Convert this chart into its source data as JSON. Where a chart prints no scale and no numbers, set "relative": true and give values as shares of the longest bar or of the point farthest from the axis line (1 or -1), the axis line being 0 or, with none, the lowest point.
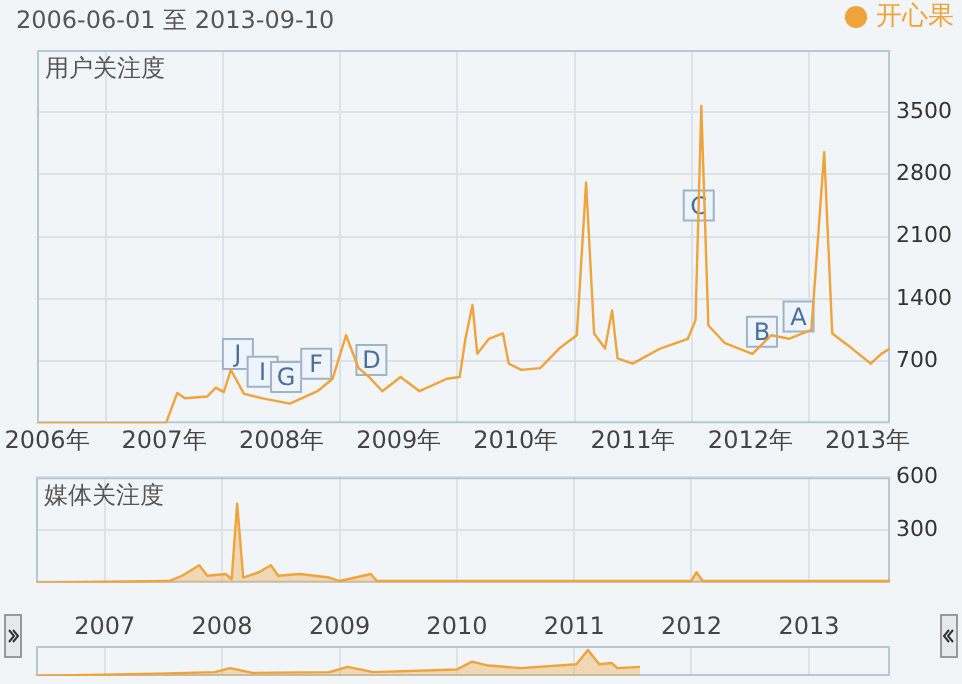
{
  "chart_data": [
    {
      "type": "line",
      "subtitle": "2006-06-01 至 2013-09-10",
      "title": "用户关注度",
      "legend": "top right",
      "grid": true,
      "x": [
        "2006-06-01",
        "2007-07-08",
        "2007-08-12",
        "2007-09-05",
        "2007-11-13",
        "2007-12-10",
        "2008-01-04",
        "2008-01-26",
        "2008-03-07",
        "2008-05-04",
        "2008-07-28",
        "2008-10-22",
        "2008-12-08",
        "2009-01-19",
        "2009-02-27",
        "2009-04-01",
        "2009-05-12",
        "2009-07-08",
        "2009-09-05",
        "2009-11-29",
        "2010-01-08",
        "2010-01-26",
        "2010-02-17",
        "2010-03-04",
        "2010-04-09",
        "2010-05-23",
        "2010-06-10",
        "2010-07-19",
        "2010-09-16",
        "2010-11-14",
        "2011-01-08",
        "2011-02-06",
        "2011-03-03",
        "2011-04-06",
        "2011-04-28",
        "2011-05-15",
        "2011-07-01",
        "2011-09-25",
        "2011-12-20",
        "2012-01-13",
        "2012-01-31",
        "2012-02-22",
        "2012-04-14",
        "2012-07-08",
        "2012-09-05",
        "2012-10-30",
        "2013-01-08",
        "2013-02-17",
        "2013-03-14",
        "2013-05-15",
        "2013-07-12",
        "2013-08-14",
        "2013-09-10"
      ],
      "series": [
        {
          "name": "开心果",
          "color": "#efa33a",
          "values": [
            0,
            0,
            340,
            280,
            300,
            400,
            350,
            600,
            330,
            280,
            220,
            360,
            500,
            990,
            620,
            520,
            360,
            520,
            360,
            500,
            520,
            950,
            1330,
            780,
            950,
            1010,
            670,
            600,
            620,
            840,
            990,
            2710,
            1010,
            840,
            1270,
            730,
            670,
            840,
            950,
            1160,
            3570,
            1100,
            900,
            780,
            990,
            950,
            1050,
            3050,
            1010,
            840,
            670,
            780,
            840
          ]
        }
      ],
      "xlim": [
        "2006-06-01",
        "2013-09-10"
      ],
      "xticks": [
        {
          "value": "2006-07-02",
          "label": "2006年"
        },
        {
          "value": "2007-01-01",
          "label": null
        },
        {
          "value": "2007-07-02",
          "label": "2007年"
        },
        {
          "value": "2008-01-01",
          "label": null
        },
        {
          "value": "2008-07-02",
          "label": "2008年"
        },
        {
          "value": "2009-01-01",
          "label": null
        },
        {
          "value": "2009-07-02",
          "label": "2009年"
        },
        {
          "value": "2010-01-01",
          "label": null
        },
        {
          "value": "2010-07-02",
          "label": "2010年"
        },
        {
          "value": "2011-01-01",
          "label": null
        },
        {
          "value": "2011-07-02",
          "label": "2011年"
        },
        {
          "value": "2012-01-01",
          "label": null
        },
        {
          "value": "2012-07-02",
          "label": "2012年"
        },
        {
          "value": "2013-01-01",
          "label": null
        },
        {
          "value": "2013-07-02",
          "label": "2013年"
        }
      ],
      "ylim": [
        0,
        4200
      ],
      "yticks": [
        700,
        1400,
        2100,
        2800,
        3500
      ],
      "annotations": [
        {
          "text": "J",
          "x": "2008-02-17",
          "y": 780
        },
        {
          "text": "I",
          "x": "2008-05-04",
          "y": 580
        },
        {
          "text": "G",
          "x": "2008-07-16",
          "y": 520
        },
        {
          "text": "F",
          "x": "2008-10-18",
          "y": 670
        },
        {
          "text": "D",
          "x": "2009-04-08",
          "y": 710
        },
        {
          "text": "C",
          "x": "2012-01-23",
          "y": 2450
        },
        {
          "text": "B",
          "x": "2012-08-07",
          "y": 1030
        },
        {
          "text": "A",
          "x": "2012-11-29",
          "y": 1200
        }
      ]
    },
    {
      "type": "area",
      "title": "媒体关注度",
      "grid": true,
      "tick_labels": "y",
      "x": [
        "2006-06-01",
        "2007-07-20",
        "2007-08-30",
        "2007-10-22",
        "2007-11-16",
        "2008-01-12",
        "2008-01-31",
        "2008-02-17",
        "2008-03-07",
        "2008-04-24",
        "2008-06-01",
        "2008-06-24",
        "2008-08-30",
        "2008-11-30",
        "2009-01-01",
        "2009-04-08",
        "2009-04-27",
        "2010-01-26",
        "2011-01-08",
        "2011-12-31",
        "2012-01-17",
        "2012-02-05",
        "2013-09-10"
      ],
      "series": [
        {
          "color": "#efa33a",
          "values": [
            0,
            10,
            40,
            100,
            40,
            50,
            20,
            450,
            30,
            60,
            100,
            40,
            50,
            30,
            10,
            50,
            10,
            10,
            10,
            10,
            60,
            10,
            10
          ]
        }
      ],
      "xlim": [
        "2006-06-01",
        "2013-09-10"
      ],
      "xticks": [
        {
          "value": "2007-01-01",
          "label": null
        },
        {
          "value": "2008-01-01",
          "label": null
        },
        {
          "value": "2009-01-01",
          "label": null
        },
        {
          "value": "2010-01-01",
          "label": null
        },
        {
          "value": "2011-01-01",
          "label": null
        },
        {
          "value": "2012-01-01",
          "label": null
        },
        {
          "value": "2013-01-01",
          "label": null
        }
      ],
      "ylim": [
        0,
        600
      ],
      "yticks": [
        300,
        600
      ]
    },
    {
      "type": "area",
      "relative": true,
      "grid": "x",
      "tick_labels": "x",
      "x": [
        "2006-06-01",
        "2007-07-20",
        "2007-12-10",
        "2008-01-26",
        "2008-04-05",
        "2008-11-30",
        "2009-01-26",
        "2009-04-15",
        "2010-01-01",
        "2010-02-17",
        "2010-04-09",
        "2010-07-19",
        "2011-01-08",
        "2011-02-13",
        "2011-03-20",
        "2011-04-28",
        "2011-05-15",
        "2011-07-25"
      ],
      "series": [
        {
          "color": "#efa33a",
          "values": [
            0,
            0.1,
            0.15,
            0.3,
            0.12,
            0.15,
            0.35,
            0.15,
            0.25,
            0.55,
            0.4,
            0.3,
            0.45,
            1,
            0.45,
            0.5,
            0.3,
            0.35
          ]
        }
      ],
      "xlim": [
        "2006-06-01",
        "2013-09-10"
      ],
      "xticks": [
        {
          "value": "2007-01-01",
          "label": "2007"
        },
        {
          "value": "2008-01-01",
          "label": "2008"
        },
        {
          "value": "2009-01-01",
          "label": "2009"
        },
        {
          "value": "2010-01-01",
          "label": "2010"
        },
        {
          "value": "2011-01-01",
          "label": "2011"
        },
        {
          "value": "2012-01-01",
          "label": "2012"
        },
        {
          "value": "2013-01-01",
          "label": "2013"
        }
      ]
    }
  ]
}
